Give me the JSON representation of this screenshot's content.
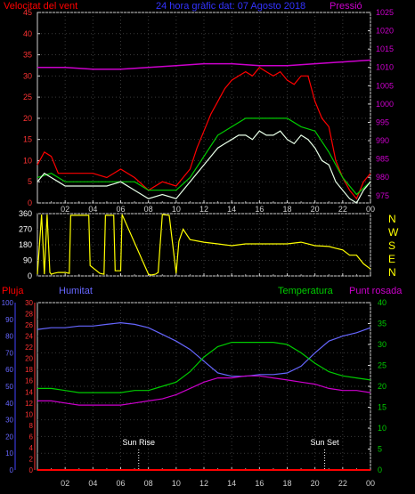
{
  "header": {
    "title_left": "Velocitat del vent",
    "title_center": "24 hora gràfic dat:  07 Agosto 2018",
    "title_right": "Pressió"
  },
  "bottom_labels": {
    "rain": "Pluja",
    "humidity": "Humitat",
    "temperature": "Temperatura",
    "dewpoint": "Punt rosada",
    "sunrise": "Sun Rise",
    "sunset": "Sun Set"
  },
  "compass": [
    "N",
    "W",
    "S",
    "E",
    "N"
  ],
  "x_ticks": [
    "02",
    "04",
    "06",
    "08",
    "10",
    "12",
    "14",
    "16",
    "18",
    "20",
    "22",
    "00"
  ],
  "colors": {
    "wind_red": "#ff0000",
    "wind_green": "#00cc00",
    "wind_white": "#e8ffe8",
    "pressure": "#cc00cc",
    "direction": "#ffff00",
    "humidity": "#6666ff",
    "temperature": "#00cc00",
    "dewpoint": "#cc00cc",
    "rain": "#ff0000"
  },
  "chart_data": [
    {
      "type": "line",
      "name": "wind-pressure",
      "title": "24 hora gràfic dat:  07 Agosto 2018",
      "xlim": [
        0,
        24
      ],
      "x_ticks": [
        2,
        4,
        6,
        8,
        10,
        12,
        14,
        16,
        18,
        20,
        22,
        24
      ],
      "y_left": {
        "label": "Velocitat del vent",
        "lim": [
          0,
          45
        ],
        "ticks": [
          0,
          5,
          10,
          15,
          20,
          25,
          30,
          35,
          40,
          45
        ]
      },
      "y_right": {
        "label": "Pressió",
        "lim": [
          973,
          1025
        ],
        "ticks": [
          975,
          980,
          985,
          990,
          995,
          1000,
          1005,
          1010,
          1015,
          1020,
          1025
        ]
      },
      "series": [
        {
          "name": "gust",
          "axis": "left",
          "color": "#ff0000",
          "x": [
            0,
            0.5,
            1,
            1.5,
            2,
            3,
            4,
            5,
            6,
            7,
            8,
            9,
            10,
            10.5,
            11,
            11.5,
            12,
            12.5,
            13,
            13.5,
            14,
            14.5,
            15,
            15.5,
            16,
            16.5,
            17,
            17.5,
            18,
            18.5,
            19,
            19.5,
            20,
            20.5,
            21,
            21.5,
            22,
            22.5,
            23,
            23.5,
            24
          ],
          "y": [
            9,
            12,
            11,
            7,
            7,
            7,
            7,
            6,
            8,
            6,
            3,
            5,
            4,
            6,
            8,
            13,
            17,
            21,
            24,
            27,
            29,
            30,
            31,
            30,
            32,
            31,
            30,
            31,
            29,
            28,
            30,
            30,
            24,
            20,
            18,
            10,
            6,
            3,
            1,
            5,
            7
          ]
        },
        {
          "name": "average",
          "axis": "left",
          "color": "#00cc00",
          "x": [
            0,
            1,
            2,
            3,
            4,
            5,
            6,
            7,
            8,
            9,
            10,
            11,
            12,
            13,
            14,
            15,
            16,
            17,
            18,
            19,
            20,
            21,
            22,
            23,
            24
          ],
          "y": [
            6,
            7,
            5,
            5,
            5,
            5,
            5,
            5,
            3,
            3,
            3,
            6,
            11,
            16,
            18,
            20,
            20,
            20,
            20,
            18,
            17,
            12,
            6,
            2,
            5
          ]
        },
        {
          "name": "speed",
          "axis": "left",
          "color": "#e8ffe8",
          "x": [
            0,
            0.5,
            1,
            1.5,
            2,
            3,
            4,
            5,
            6,
            7,
            8,
            9,
            10,
            10.5,
            11,
            11.5,
            12,
            12.5,
            13,
            13.5,
            14,
            14.5,
            15,
            15.5,
            16,
            16.5,
            17,
            17.5,
            18,
            18.5,
            19,
            19.5,
            20,
            20.5,
            21,
            21.5,
            22,
            22.5,
            23,
            23.5,
            24
          ],
          "y": [
            5,
            7,
            6,
            5,
            4,
            4,
            4,
            4,
            5,
            3,
            1,
            2,
            1,
            3,
            5,
            7,
            9,
            11,
            13,
            14,
            15,
            16,
            16,
            15,
            17,
            16,
            16,
            17,
            15,
            14,
            16,
            15,
            13,
            10,
            9,
            5,
            3,
            1,
            0,
            3,
            5
          ]
        },
        {
          "name": "pressure",
          "axis": "right",
          "color": "#cc00cc",
          "x": [
            0,
            2,
            4,
            6,
            8,
            10,
            12,
            14,
            16,
            18,
            20,
            22,
            24
          ],
          "y": [
            1010,
            1010,
            1009.5,
            1009.5,
            1010,
            1010.5,
            1011,
            1011,
            1010.5,
            1010.5,
            1011,
            1011.5,
            1012
          ]
        }
      ]
    },
    {
      "type": "line",
      "name": "wind-direction",
      "xlim": [
        0,
        24
      ],
      "x_ticks": [
        2,
        4,
        6,
        8,
        10,
        12,
        14,
        16,
        18,
        20,
        22,
        24
      ],
      "y": {
        "lim": [
          0,
          360
        ],
        "ticks": [
          0,
          90,
          180,
          270,
          360
        ]
      },
      "series": [
        {
          "name": "direction",
          "color": "#ffff00",
          "x": [
            0,
            0.3,
            0.5,
            0.7,
            0.9,
            1,
            1.2,
            1.5,
            2,
            2.3,
            2.4,
            3.7,
            3.8,
            4.5,
            4.8,
            4.9,
            5.5,
            5.6,
            6,
            6.1,
            8,
            8.2,
            8.5,
            8.7,
            9,
            9.5,
            10,
            10.2,
            10.5,
            11,
            12,
            13,
            14,
            15,
            16,
            17,
            18,
            19,
            20,
            21,
            21.5,
            22,
            22.5,
            23,
            23.5,
            24
          ],
          "y": [
            10,
            355,
            10,
            355,
            20,
            10,
            15,
            20,
            20,
            15,
            350,
            350,
            60,
            15,
            10,
            350,
            350,
            30,
            30,
            355,
            10,
            5,
            10,
            20,
            355,
            350,
            15,
            200,
            270,
            210,
            195,
            185,
            175,
            185,
            185,
            185,
            185,
            195,
            175,
            170,
            160,
            150,
            120,
            120,
            70,
            40
          ]
        }
      ]
    },
    {
      "type": "line",
      "name": "humidity-temperature",
      "xlim": [
        0,
        24
      ],
      "x_ticks": [
        2,
        4,
        6,
        8,
        10,
        12,
        14,
        16,
        18,
        20,
        22,
        24
      ],
      "y_left_outer": {
        "label": "Pluja",
        "lim": [
          0,
          100
        ],
        "ticks": [
          0,
          10,
          20,
          30,
          40,
          50,
          60,
          70,
          80,
          90,
          100
        ]
      },
      "y_left_inner": {
        "label": "Humitat",
        "lim": [
          0,
          30
        ],
        "ticks": [
          0,
          2,
          4,
          6,
          8,
          10,
          12,
          14,
          16,
          18,
          20,
          22,
          24,
          26,
          28,
          30
        ]
      },
      "y_right": {
        "label": "Temperatura / Punt rosada",
        "lim": [
          0,
          40
        ],
        "ticks": [
          0,
          5,
          10,
          15,
          20,
          25,
          30,
          35,
          40
        ]
      },
      "annotations": [
        {
          "label": "Sun Rise",
          "x": 7.3
        },
        {
          "label": "Sun Set",
          "x": 20.7
        }
      ],
      "series": [
        {
          "name": "humidity",
          "axis": "left_outer",
          "color": "#6666ff",
          "x": [
            0,
            1,
            2,
            3,
            4,
            5,
            6,
            7,
            8,
            9,
            10,
            11,
            12,
            13,
            14,
            15,
            16,
            17,
            18,
            19,
            20,
            21,
            22,
            23,
            24
          ],
          "y": [
            84,
            85,
            85,
            86,
            86,
            87,
            88,
            87,
            85,
            81,
            77,
            72,
            65,
            58,
            56,
            56,
            57,
            57,
            58,
            62,
            70,
            77,
            80,
            82,
            85
          ]
        },
        {
          "name": "temperature",
          "axis": "right",
          "color": "#00cc00",
          "x": [
            0,
            1,
            2,
            3,
            4,
            5,
            6,
            7,
            8,
            9,
            10,
            11,
            12,
            13,
            14,
            15,
            16,
            17,
            18,
            19,
            20,
            21,
            22,
            23,
            24
          ],
          "y": [
            19.5,
            19.5,
            19,
            18.5,
            18.5,
            18.5,
            18.5,
            19,
            19,
            20,
            21,
            23.5,
            27,
            29.5,
            30.5,
            30.5,
            30.5,
            30.5,
            30,
            28,
            25.5,
            23.5,
            22.5,
            22,
            21.5
          ]
        },
        {
          "name": "dewpoint",
          "axis": "right",
          "color": "#cc00cc",
          "x": [
            0,
            1,
            2,
            3,
            4,
            5,
            6,
            7,
            8,
            9,
            10,
            11,
            12,
            13,
            14,
            15,
            16,
            17,
            18,
            19,
            20,
            21,
            22,
            23,
            24
          ],
          "y": [
            16.5,
            16.5,
            16,
            15.5,
            15.5,
            15.5,
            15.5,
            16,
            16.5,
            17,
            18,
            19.5,
            21,
            22,
            22,
            22.5,
            22.5,
            22,
            21.5,
            21,
            20.5,
            19.5,
            19,
            19,
            18.5
          ]
        },
        {
          "name": "rain",
          "axis": "left_outer",
          "color": "#ff0000",
          "x": [
            0,
            24
          ],
          "y": [
            0,
            0
          ]
        }
      ]
    }
  ]
}
